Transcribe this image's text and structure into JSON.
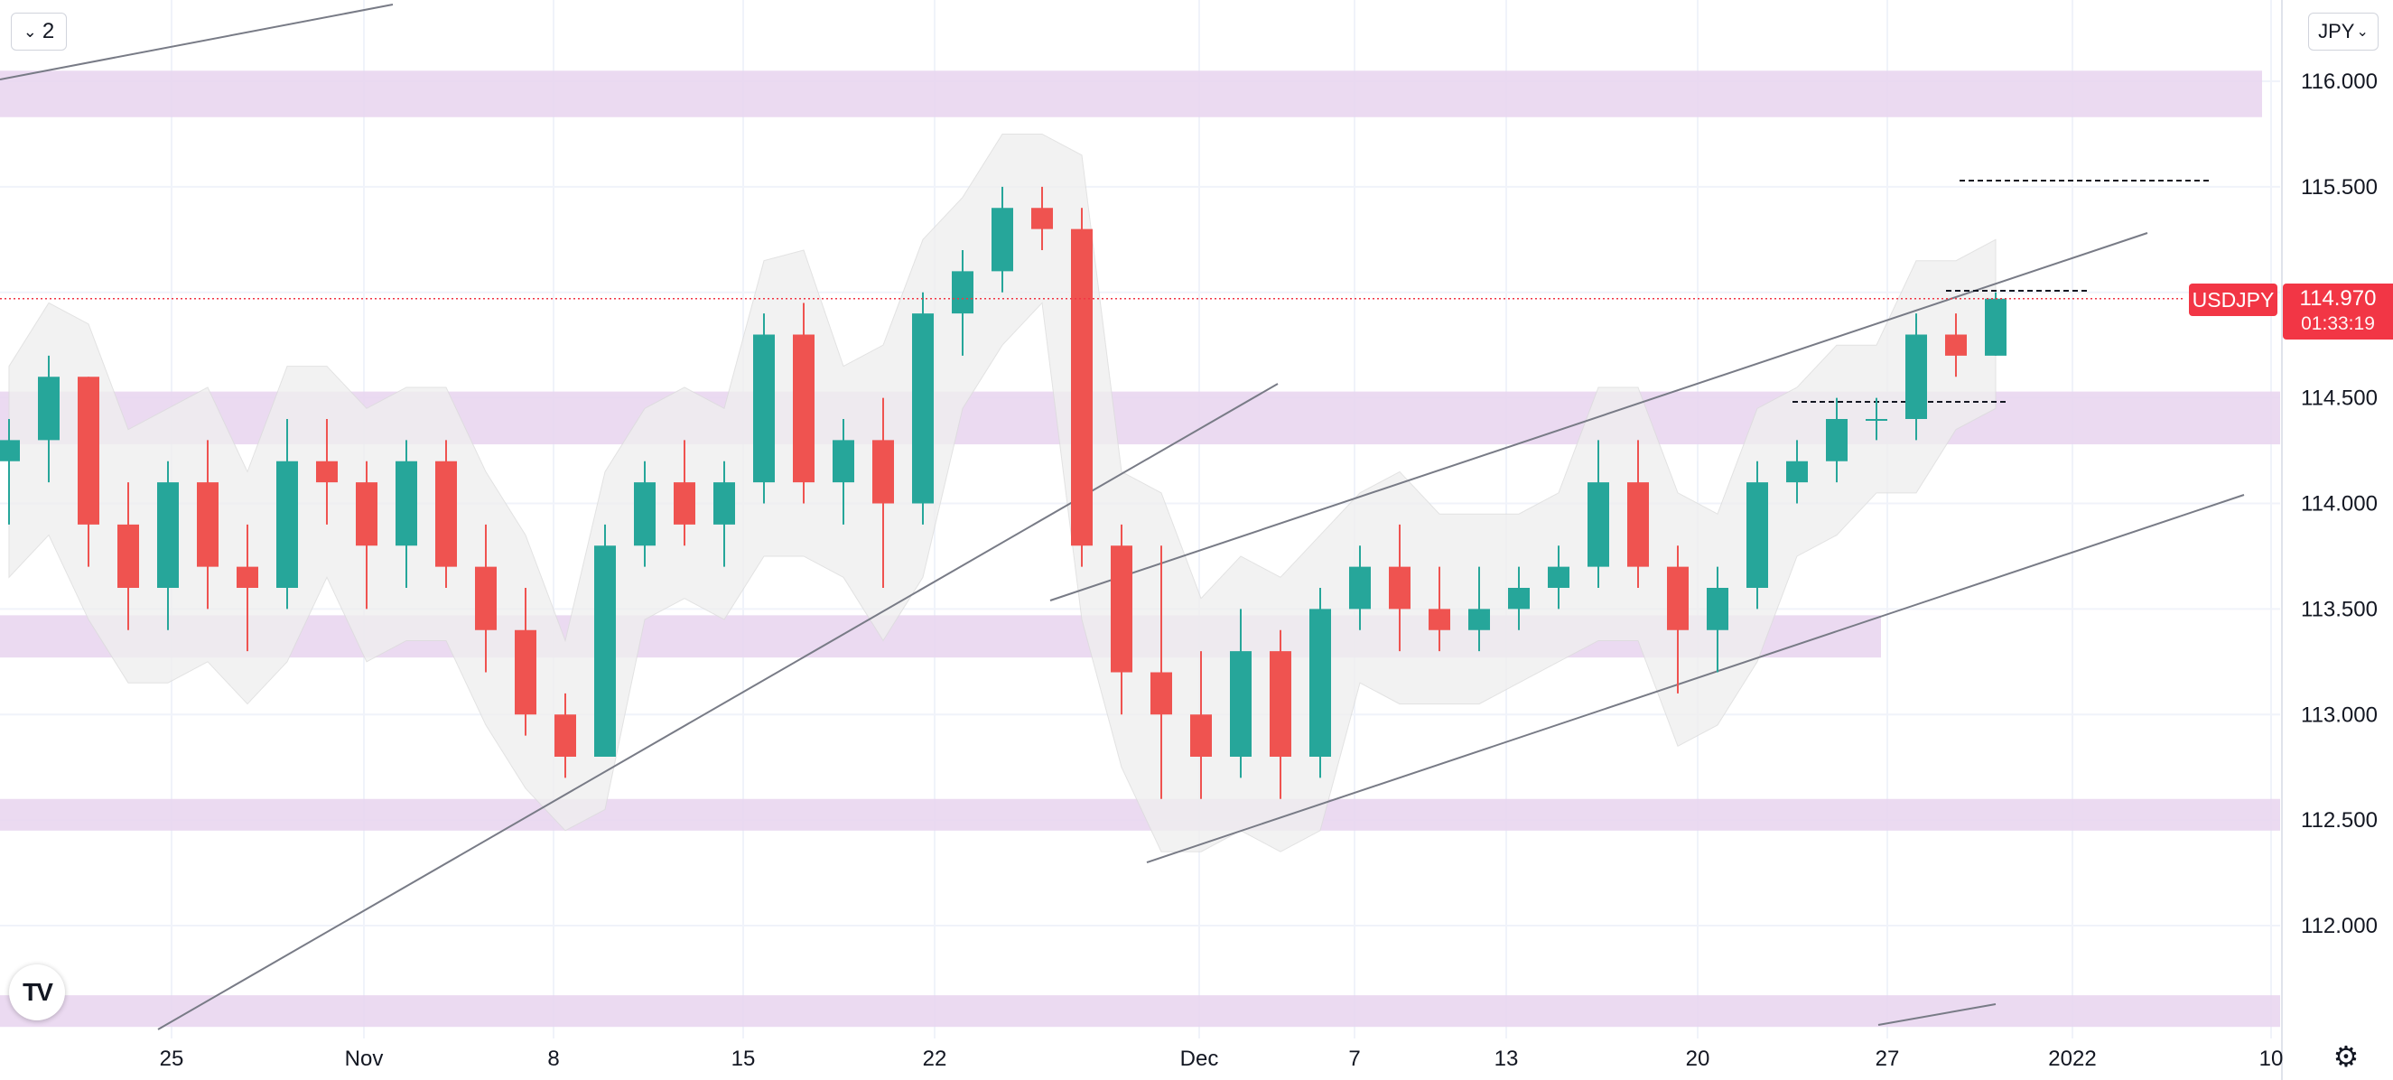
{
  "toolbar": {
    "interval_label": "2",
    "currency_label": "JPY"
  },
  "symbol": {
    "name": "USDJPY",
    "last_price": "114.970",
    "countdown": "01:33:19"
  },
  "colors": {
    "up": "#26a69a",
    "down": "#ef5350",
    "zone": "#e7d3ee",
    "band": "#efefef",
    "price_line": "#f23645"
  },
  "icons": {
    "interval": "chevron-down-icon",
    "currency": "chevron-down-icon",
    "logo": "tradingview-logo",
    "settings": "gear-icon"
  },
  "chart_data": {
    "type": "candlestick",
    "title": "",
    "xlabel": "",
    "ylabel": "",
    "ylim": [
      111.5,
      116.4
    ],
    "x_tick_labels": [
      "25",
      "Nov",
      "8",
      "15",
      "22",
      "Dec",
      "7",
      "13",
      "20",
      "27",
      "2022",
      "10"
    ],
    "y_tick_labels": [
      "116.000",
      "115.500",
      "115.000",
      "114.500",
      "114.000",
      "113.500",
      "113.000",
      "112.500",
      "112.000"
    ],
    "y_tick_values": [
      116.0,
      115.5,
      115.0,
      114.5,
      114.0,
      113.5,
      113.0,
      112.5,
      112.0
    ],
    "last_price": 114.97,
    "grid": true,
    "candles": [
      {
        "d": "Oct 20",
        "o": 114.2,
        "h": 114.4,
        "l": 113.9,
        "c": 114.3
      },
      {
        "d": "Oct 21",
        "o": 114.3,
        "h": 114.7,
        "l": 114.1,
        "c": 114.6
      },
      {
        "d": "Oct 22",
        "o": 114.6,
        "h": 114.6,
        "l": 113.7,
        "c": 113.9
      },
      {
        "d": "Oct 25",
        "o": 113.9,
        "h": 114.1,
        "l": 113.4,
        "c": 113.6
      },
      {
        "d": "Oct 26",
        "o": 113.6,
        "h": 114.2,
        "l": 113.4,
        "c": 114.1
      },
      {
        "d": "Oct 27",
        "o": 114.1,
        "h": 114.3,
        "l": 113.5,
        "c": 113.7
      },
      {
        "d": "Oct 28",
        "o": 113.7,
        "h": 113.9,
        "l": 113.3,
        "c": 113.6
      },
      {
        "d": "Oct 29",
        "o": 113.6,
        "h": 114.4,
        "l": 113.5,
        "c": 114.2
      },
      {
        "d": "Nov 1",
        "o": 114.2,
        "h": 114.4,
        "l": 113.9,
        "c": 114.1
      },
      {
        "d": "Nov 2",
        "o": 114.1,
        "h": 114.2,
        "l": 113.5,
        "c": 113.8
      },
      {
        "d": "Nov 3",
        "o": 113.8,
        "h": 114.3,
        "l": 113.6,
        "c": 114.2
      },
      {
        "d": "Nov 4",
        "o": 114.2,
        "h": 114.3,
        "l": 113.6,
        "c": 113.7
      },
      {
        "d": "Nov 5",
        "o": 113.7,
        "h": 113.9,
        "l": 113.2,
        "c": 113.4
      },
      {
        "d": "Nov 8",
        "o": 113.4,
        "h": 113.6,
        "l": 112.9,
        "c": 113.0
      },
      {
        "d": "Nov 9",
        "o": 113.0,
        "h": 113.1,
        "l": 112.7,
        "c": 112.8
      },
      {
        "d": "Nov 10",
        "o": 112.8,
        "h": 113.9,
        "l": 112.8,
        "c": 113.8
      },
      {
        "d": "Nov 11",
        "o": 113.8,
        "h": 114.2,
        "l": 113.7,
        "c": 114.1
      },
      {
        "d": "Nov 12",
        "o": 114.1,
        "h": 114.3,
        "l": 113.8,
        "c": 113.9
      },
      {
        "d": "Nov 15",
        "o": 113.9,
        "h": 114.2,
        "l": 113.7,
        "c": 114.1
      },
      {
        "d": "Nov 16",
        "o": 114.1,
        "h": 114.9,
        "l": 114.0,
        "c": 114.8
      },
      {
        "d": "Nov 17",
        "o": 114.8,
        "h": 114.95,
        "l": 114.0,
        "c": 114.1
      },
      {
        "d": "Nov 18",
        "o": 114.1,
        "h": 114.4,
        "l": 113.9,
        "c": 114.3
      },
      {
        "d": "Nov 19",
        "o": 114.3,
        "h": 114.5,
        "l": 113.6,
        "c": 114.0
      },
      {
        "d": "Nov 22",
        "o": 114.0,
        "h": 115.0,
        "l": 113.9,
        "c": 114.9
      },
      {
        "d": "Nov 23",
        "o": 114.9,
        "h": 115.2,
        "l": 114.7,
        "c": 115.1
      },
      {
        "d": "Nov 24",
        "o": 115.1,
        "h": 115.5,
        "l": 115.0,
        "c": 115.4
      },
      {
        "d": "Nov 25",
        "o": 115.4,
        "h": 115.5,
        "l": 115.2,
        "c": 115.3
      },
      {
        "d": "Nov 26",
        "o": 115.3,
        "h": 115.4,
        "l": 113.7,
        "c": 113.8
      },
      {
        "d": "Nov 29",
        "o": 113.8,
        "h": 113.9,
        "l": 113.0,
        "c": 113.2
      },
      {
        "d": "Nov 30",
        "o": 113.2,
        "h": 113.8,
        "l": 112.6,
        "c": 113.0
      },
      {
        "d": "Dec 1",
        "o": 113.0,
        "h": 113.3,
        "l": 112.6,
        "c": 112.8
      },
      {
        "d": "Dec 2",
        "o": 112.8,
        "h": 113.5,
        "l": 112.7,
        "c": 113.3
      },
      {
        "d": "Dec 3",
        "o": 113.3,
        "h": 113.4,
        "l": 112.6,
        "c": 112.8
      },
      {
        "d": "Dec 6",
        "o": 112.8,
        "h": 113.6,
        "l": 112.7,
        "c": 113.5
      },
      {
        "d": "Dec 7",
        "o": 113.5,
        "h": 113.8,
        "l": 113.4,
        "c": 113.7
      },
      {
        "d": "Dec 8",
        "o": 113.7,
        "h": 113.9,
        "l": 113.3,
        "c": 113.5
      },
      {
        "d": "Dec 9",
        "o": 113.5,
        "h": 113.7,
        "l": 113.3,
        "c": 113.4
      },
      {
        "d": "Dec 10",
        "o": 113.4,
        "h": 113.7,
        "l": 113.3,
        "c": 113.5
      },
      {
        "d": "Dec 13",
        "o": 113.5,
        "h": 113.7,
        "l": 113.4,
        "c": 113.6
      },
      {
        "d": "Dec 14",
        "o": 113.6,
        "h": 113.8,
        "l": 113.5,
        "c": 113.7
      },
      {
        "d": "Dec 15",
        "o": 113.7,
        "h": 114.3,
        "l": 113.6,
        "c": 114.1
      },
      {
        "d": "Dec 16",
        "o": 114.1,
        "h": 114.3,
        "l": 113.6,
        "c": 113.7
      },
      {
        "d": "Dec 17",
        "o": 113.7,
        "h": 113.8,
        "l": 113.1,
        "c": 113.4
      },
      {
        "d": "Dec 20",
        "o": 113.4,
        "h": 113.7,
        "l": 113.2,
        "c": 113.6
      },
      {
        "d": "Dec 21",
        "o": 113.6,
        "h": 114.2,
        "l": 113.5,
        "c": 114.1
      },
      {
        "d": "Dec 22",
        "o": 114.1,
        "h": 114.3,
        "l": 114.0,
        "c": 114.2
      },
      {
        "d": "Dec 23",
        "o": 114.2,
        "h": 114.5,
        "l": 114.1,
        "c": 114.4
      },
      {
        "d": "Dec 24",
        "o": 114.4,
        "h": 114.5,
        "l": 114.3,
        "c": 114.4
      },
      {
        "d": "Dec 27",
        "o": 114.4,
        "h": 114.9,
        "l": 114.3,
        "c": 114.8
      },
      {
        "d": "Dec 28",
        "o": 114.8,
        "h": 114.9,
        "l": 114.6,
        "c": 114.7
      },
      {
        "d": "Dec 29",
        "o": 114.7,
        "h": 115.0,
        "l": 114.7,
        "c": 114.97
      }
    ]
  }
}
